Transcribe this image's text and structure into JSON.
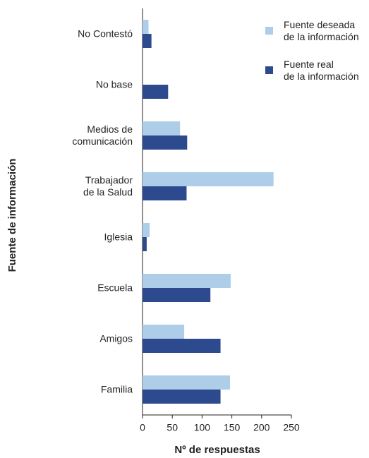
{
  "chart_data": {
    "type": "bar",
    "orientation": "horizontal",
    "x_label": "Nº de respuestas",
    "y_label": "Fuente de información",
    "categories": [
      "No Contestó",
      "No base",
      "Medios de\ncomunicación",
      "Trabajador\nde la Salud",
      "Iglesia",
      "Escuela",
      "Amigos",
      "Familia"
    ],
    "series": [
      {
        "name": "Fuente deseada\nde la información",
        "color": "#aecde9",
        "values": [
          10,
          0,
          63,
          220,
          12,
          148,
          70,
          147
        ]
      },
      {
        "name": "Fuente real\nde la información",
        "color": "#2e4a8f",
        "values": [
          15,
          43,
          75,
          74,
          7,
          114,
          131,
          131
        ]
      }
    ],
    "xlim": [
      0,
      250
    ],
    "xticks": [
      0,
      50,
      100,
      150,
      200,
      250
    ],
    "legend": "upper right"
  }
}
